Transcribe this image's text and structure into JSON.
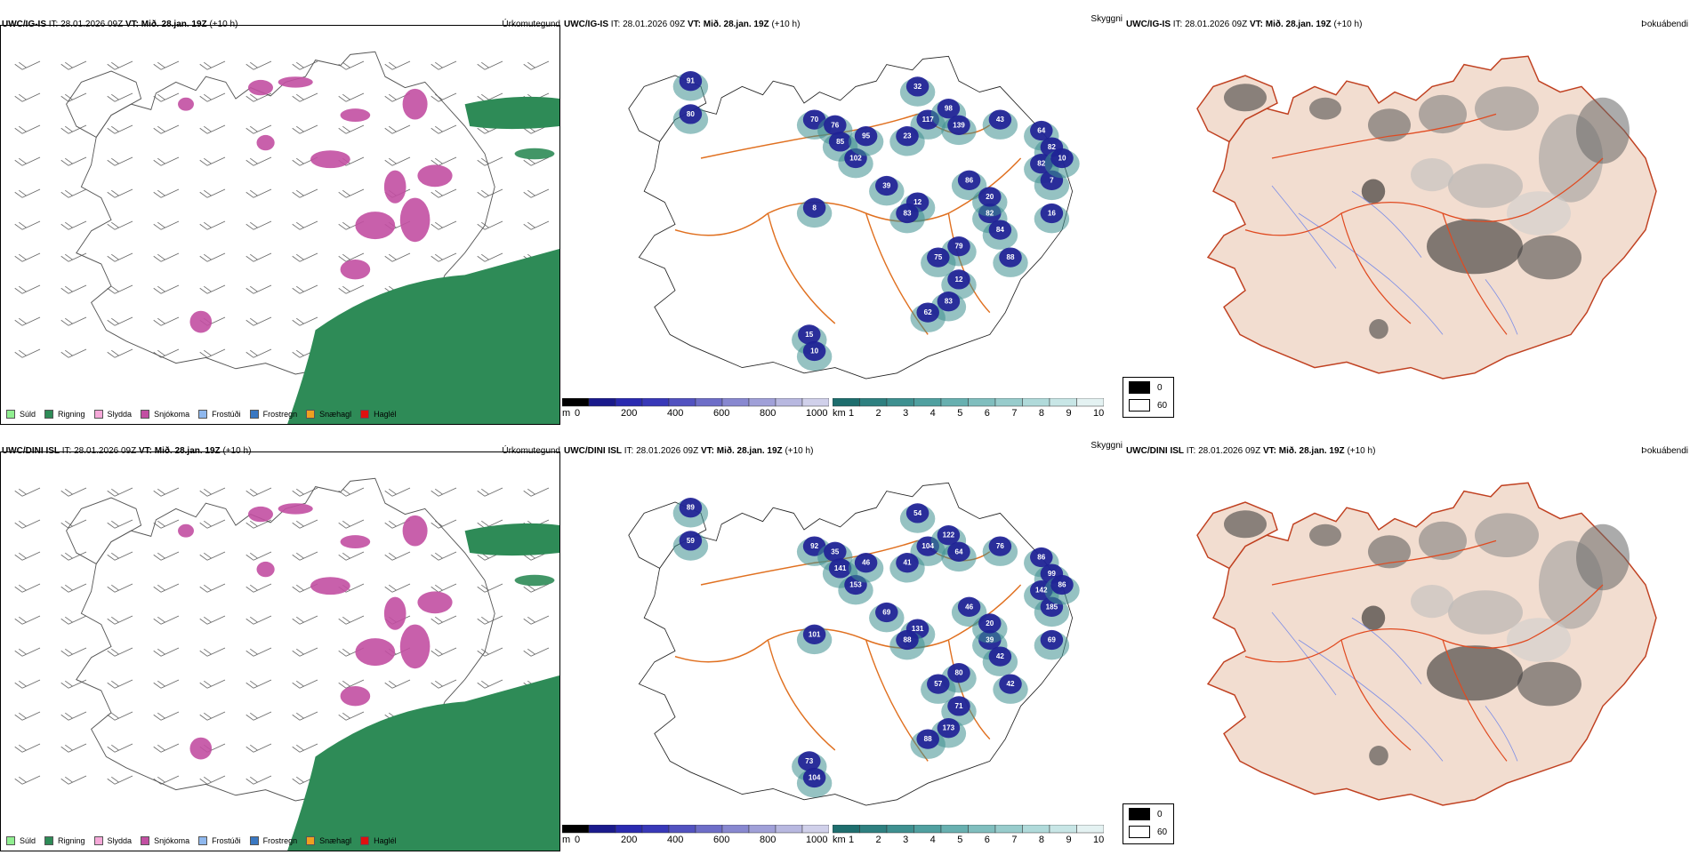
{
  "rows": [
    {
      "precip_title": {
        "model": "UWC/IG-IS",
        "it": "IT: 28.01.2026 09Z",
        "vt_label": "VT:",
        "vt_value": "Mið. 28.jan. 19Z",
        "lead": "(+10 h)"
      },
      "vis_title": {
        "model": "UWC/IG-IS",
        "it": "IT: 28.01.2026 09Z",
        "vt_label": "VT:",
        "vt_value": "Mið. 28.jan. 19Z",
        "lead": "(+10 h)"
      },
      "cloud_title": {
        "model": "UWC/IG-IS",
        "it": "IT: 28.01.2026 09Z",
        "vt_label": "VT:",
        "vt_value": "Mið. 28.jan. 19Z",
        "lead": "(+10 h)"
      },
      "precip_panel_label": "Úrkomutegund",
      "vis_panel_label": "Skyggni",
      "cloud_panel_label": "Þokuábendi",
      "vis_values": [
        "91",
        "70",
        "76",
        "85",
        "102",
        "95",
        "32",
        "117",
        "98",
        "139",
        "43",
        "64",
        "82",
        "82",
        "7",
        "12",
        "8",
        "83",
        "82",
        "84",
        "79",
        "75",
        "12",
        "83",
        "62",
        "15",
        "10",
        "80",
        "39",
        "10",
        "16",
        "86",
        "20",
        "23",
        "88"
      ]
    },
    {
      "precip_title": {
        "model": "UWC/DINI ISL",
        "it": "IT: 28.01.2026 09Z",
        "vt_label": "VT:",
        "vt_value": "Mið. 28.jan. 19Z",
        "lead": "(+10 h)"
      },
      "vis_title": {
        "model": "UWC/DINI ISL",
        "it": "IT: 28.01.2026 09Z",
        "vt_label": "VT:",
        "vt_value": "Mið. 28.jan. 19Z",
        "lead": "(+10 h)"
      },
      "cloud_title": {
        "model": "UWC/DINI ISL",
        "it": "IT: 28.01.2026 09Z",
        "vt_label": "VT:",
        "vt_value": "Mið. 28.jan. 19Z",
        "lead": "(+10 h)"
      },
      "precip_panel_label": "Úrkomutegund",
      "vis_panel_label": "Skyggni",
      "cloud_panel_label": "Þokuábendi",
      "vis_values": [
        "89",
        "92",
        "35",
        "141",
        "153",
        "46",
        "54",
        "104",
        "122",
        "64",
        "76",
        "86",
        "99",
        "142",
        "185",
        "131",
        "101",
        "88",
        "39",
        "42",
        "80",
        "57",
        "71",
        "173",
        "88",
        "73",
        "104",
        "59",
        "69",
        "86",
        "69",
        "46",
        "20",
        "41",
        "42"
      ]
    }
  ],
  "precip_legend": [
    {
      "label": "Súld",
      "color": "#90ee90"
    },
    {
      "label": "Rigning",
      "color": "#2e8b57"
    },
    {
      "label": "Slydda",
      "color": "#f5a8d8"
    },
    {
      "label": "Snjókoma",
      "color": "#c24fa2"
    },
    {
      "label": "Frostúði",
      "color": "#8fb8ee"
    },
    {
      "label": "Frostregn",
      "color": "#3a78c2"
    },
    {
      "label": "Snæhagl",
      "color": "#f0a020"
    },
    {
      "label": "Haglél",
      "color": "#e01010"
    }
  ],
  "colorbar_m": {
    "unit": "m",
    "ticks": [
      "0",
      "200",
      "400",
      "600",
      "800",
      "1000"
    ],
    "colors": [
      "#000000",
      "#1a1a8c",
      "#2a2ab0",
      "#3838b8",
      "#5252c0",
      "#6e6ec8",
      "#8888d0",
      "#a0a0d8",
      "#b8b8e0",
      "#d0d0ea"
    ]
  },
  "colorbar_km": {
    "unit": "km",
    "ticks": [
      "1",
      "2",
      "3",
      "4",
      "5",
      "6",
      "7",
      "8",
      "9",
      "10"
    ],
    "colors": [
      "#1e6e6e",
      "#2e8080",
      "#3e9090",
      "#50a0a0",
      "#68b0b0",
      "#80bebe",
      "#98cccc",
      "#b0dada",
      "#c8e6e6",
      "#e4f2f2"
    ]
  },
  "shade_legend": [
    {
      "label": "0",
      "color": "#000000"
    },
    {
      "label": "60",
      "color": "#ffffff"
    }
  ],
  "colors": {
    "snow": "#c24fa2",
    "rain": "#2e8b57",
    "blue_vis": "#1e1e96",
    "teal_vis": "#3e9090",
    "road": "#e07020",
    "land": "#f2ddd0"
  }
}
